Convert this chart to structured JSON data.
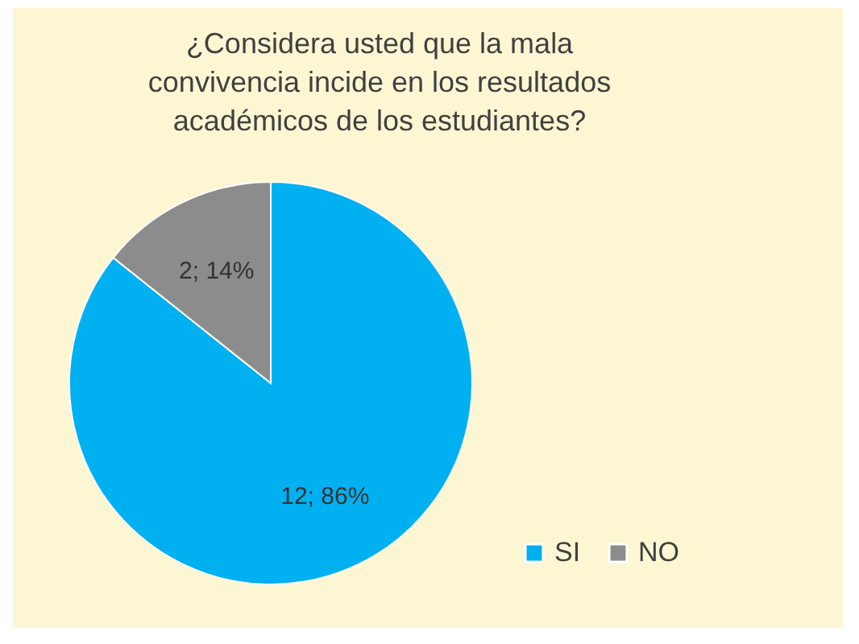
{
  "chart_data": {
    "type": "pie",
    "title": "¿Considera usted que la mala\nconvivencia incide en los resultados\nacadémicos de los estudiantes?",
    "categories": [
      "SI",
      "NO"
    ],
    "values": [
      12,
      2
    ],
    "value_labels": [
      "12; 86%",
      "2; 14%"
    ],
    "colors": [
      "#00b0f0",
      "#8c8c8c"
    ],
    "legend": "bottom right"
  }
}
